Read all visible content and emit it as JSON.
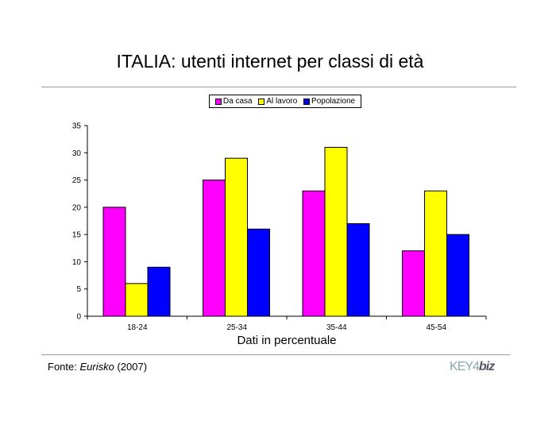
{
  "title": "ITALIA: utenti internet per classi di età",
  "footer": {
    "source_prefix": "Fonte: ",
    "source_name": "Eurisko",
    "source_year": " (2007)",
    "logo": "KEY4biz"
  },
  "chart_data": {
    "type": "bar",
    "title": "ITALIA: utenti internet per classi di età",
    "xlabel": "Dati in percentuale",
    "ylabel": "",
    "ylim": [
      0,
      35
    ],
    "yticks": [
      0,
      5,
      10,
      15,
      20,
      25,
      30,
      35
    ],
    "categories": [
      "18-24",
      "25-34",
      "35-44",
      "45-54"
    ],
    "legend_position": "top-center",
    "grid": false,
    "series": [
      {
        "name": "Da casa",
        "color": "#ff00ff",
        "values": [
          20,
          25,
          23,
          12
        ]
      },
      {
        "name": "Al lavoro",
        "color": "#ffff00",
        "values": [
          6,
          29,
          31,
          23
        ]
      },
      {
        "name": "Popolazione",
        "color": "#0000ff",
        "values": [
          9,
          16,
          17,
          15
        ]
      }
    ]
  }
}
